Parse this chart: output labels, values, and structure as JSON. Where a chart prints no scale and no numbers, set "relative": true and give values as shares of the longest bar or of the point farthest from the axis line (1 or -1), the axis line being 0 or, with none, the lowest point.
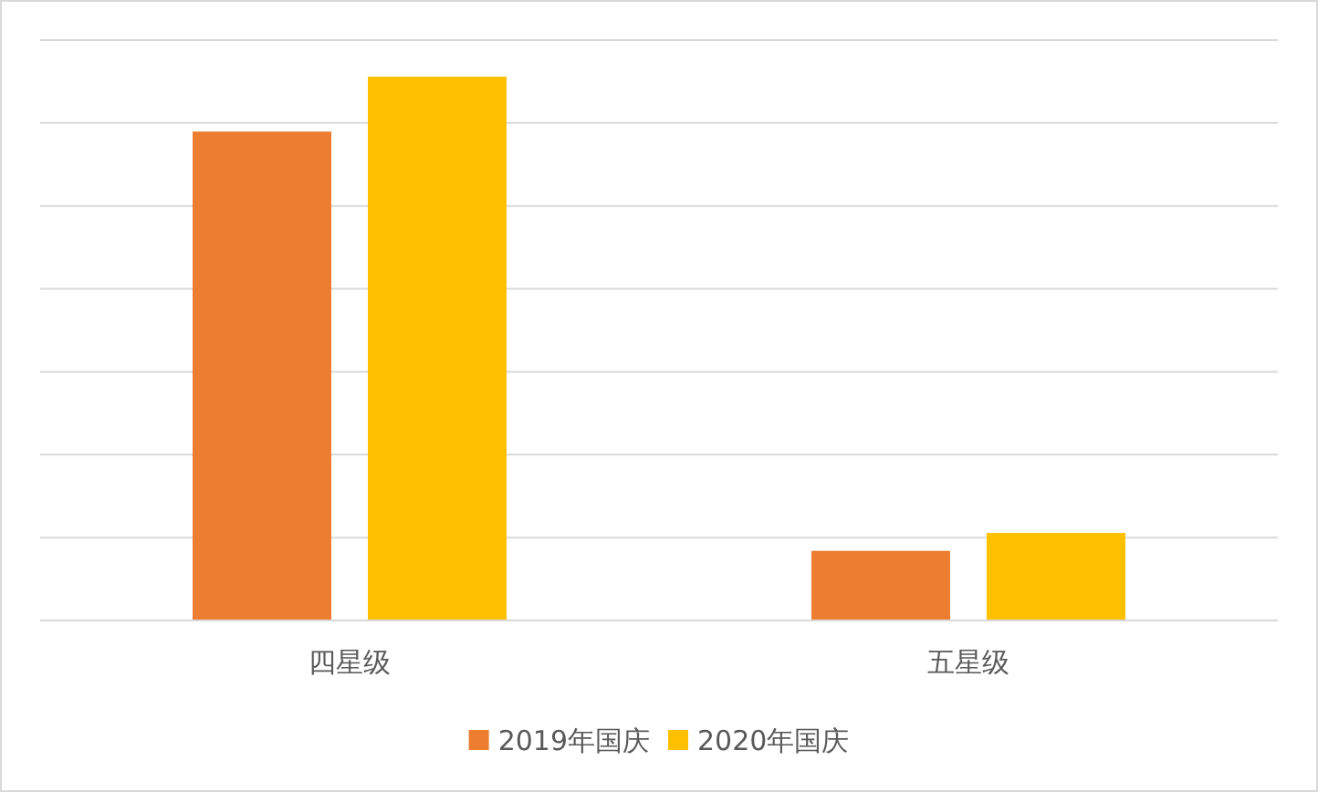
{
  "chart_data": {
    "type": "bar",
    "relative": true,
    "categories": [
      "四星级",
      "五星级"
    ],
    "series": [
      {
        "name": "2019年国庆",
        "color": "#ed7d31",
        "values": [
          0.899,
          0.128
        ]
      },
      {
        "name": "2020年国庆",
        "color": "#ffc000",
        "values": [
          1,
          0.161
        ]
      }
    ],
    "grid": "y",
    "legend": "bottom"
  }
}
